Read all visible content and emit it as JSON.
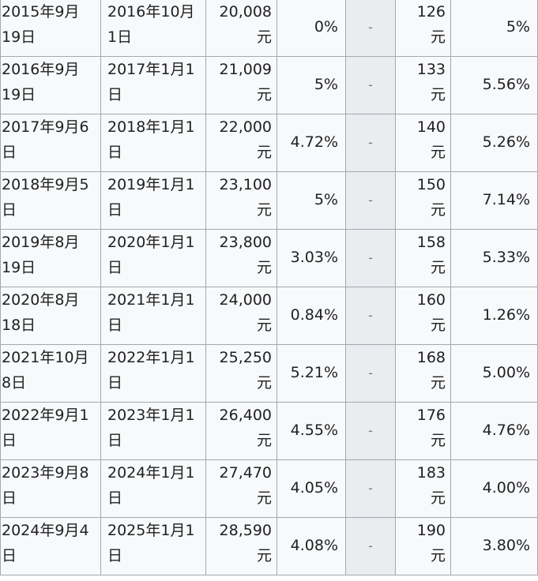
{
  "table": {
    "dash": "-",
    "yuan": "元",
    "rows": [
      {
        "date1_a": "2015年9月",
        "date1_b": "19日",
        "date2_a": "2016年10月",
        "date2_b": "1日",
        "amount": "20,008",
        "pct1": "0%",
        "fee": "126",
        "pct2": "5%"
      },
      {
        "date1_a": "2016年9月",
        "date1_b": "19日",
        "date2_a": "2017年1月1",
        "date2_b": "日",
        "amount": "21,009",
        "pct1": "5%",
        "fee": "133",
        "pct2": "5.56%"
      },
      {
        "date1_a": "2017年9月6",
        "date1_b": "日",
        "date2_a": "2018年1月1",
        "date2_b": "日",
        "amount": "22,000",
        "pct1": "4.72%",
        "fee": "140",
        "pct2": "5.26%"
      },
      {
        "date1_a": "2018年9月5",
        "date1_b": "日",
        "date2_a": "2019年1月1",
        "date2_b": "日",
        "amount": "23,100",
        "pct1": "5%",
        "fee": "150",
        "pct2": "7.14%"
      },
      {
        "date1_a": "2019年8月",
        "date1_b": "19日",
        "date2_a": "2020年1月1",
        "date2_b": "日",
        "amount": "23,800",
        "pct1": "3.03%",
        "fee": "158",
        "pct2": "5.33%"
      },
      {
        "date1_a": "2020年8月",
        "date1_b": "18日",
        "date2_a": "2021年1月1",
        "date2_b": "日",
        "amount": "24,000",
        "pct1": "0.84%",
        "fee": "160",
        "pct2": "1.26%"
      },
      {
        "date1_a": "2021年10月",
        "date1_b": "8日",
        "date2_a": "2022年1月1",
        "date2_b": "日",
        "amount": "25,250",
        "pct1": "5.21%",
        "fee": "168",
        "pct2": "5.00%"
      },
      {
        "date1_a": "2022年9月1",
        "date1_b": "日",
        "date2_a": "2023年1月1",
        "date2_b": "日",
        "amount": "26,400",
        "pct1": "4.55%",
        "fee": "176",
        "pct2": "4.76%"
      },
      {
        "date1_a": "2023年9月8",
        "date1_b": "日",
        "date2_a": "2024年1月1",
        "date2_b": "日",
        "amount": "27,470",
        "pct1": "4.05%",
        "fee": "183",
        "pct2": "4.00%"
      },
      {
        "date1_a": "2024年9月4",
        "date1_b": "日",
        "date2_a": "2025年1月1",
        "date2_b": "日",
        "amount": "28,590",
        "pct1": "4.08%",
        "fee": "190",
        "pct2": "3.80%"
      }
    ]
  }
}
